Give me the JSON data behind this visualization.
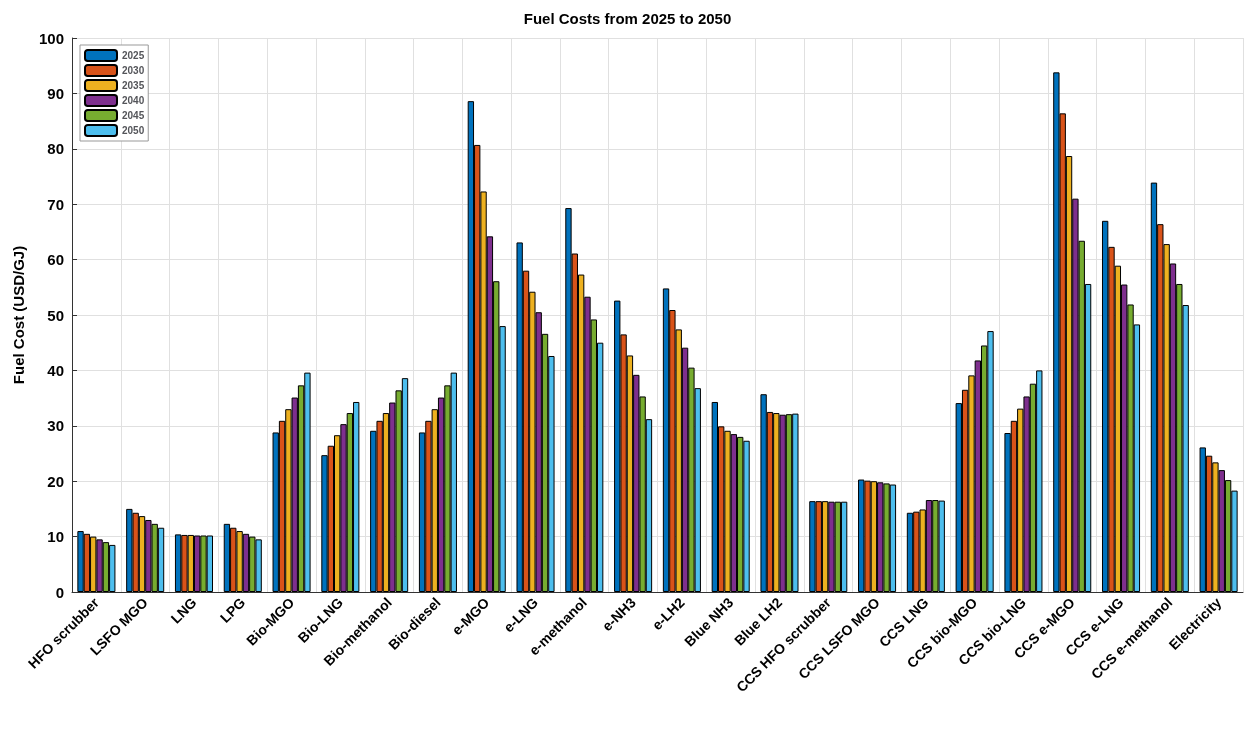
{
  "chart_data": {
    "type": "bar",
    "title": "Fuel Costs from 2025 to 2050",
    "ylabel": "Fuel Cost (USD/GJ)",
    "categories": [
      "HFO scrubber",
      "LSFO MGO",
      "LNG",
      "LPG",
      "Bio-MGO",
      "Bio-LNG",
      "Bio-methanol",
      "Bio-diesel",
      "e-MGO",
      "e-LNG",
      "e-methanol",
      "e-NH3",
      "e-LH2",
      "Blue NH3",
      "Blue LH2",
      "CCS HFO scrubber",
      "CCS LSFO MGO",
      "CCS LNG",
      "CCS bio-MGO",
      "CCS bio-LNG",
      "CCS e-MGO",
      "CCS e-LNG",
      "CCS e-methanol",
      "Electricity"
    ],
    "series": [
      {
        "name": "2025",
        "color": "#0072bd",
        "values": [
          11,
          15,
          10.4,
          12.3,
          28.8,
          24.7,
          29.1,
          28.8,
          88.6,
          63.1,
          69.3,
          52.6,
          54.8,
          34.3,
          35.7,
          16.4,
          20.3,
          14.3,
          34.1,
          28.7,
          93.8,
          67,
          73.9,
          26.1
        ]
      },
      {
        "name": "2030",
        "color": "#d95319",
        "values": [
          10.5,
          14.3,
          10.3,
          11.6,
          30.9,
          26.4,
          30.9,
          30.9,
          80.7,
          58,
          61.1,
          46.5,
          50.9,
          29.9,
          32.5,
          16.4,
          20.1,
          14.5,
          36.5,
          30.9,
          86.4,
          62.3,
          66.4,
          24.6
        ]
      },
      {
        "name": "2035",
        "color": "#edb120",
        "values": [
          10,
          13.7,
          10.3,
          11,
          33,
          28.3,
          32.3,
          33,
          72.3,
          54.2,
          57.3,
          42.7,
          47.4,
          29.1,
          32.3,
          16.4,
          20,
          14.9,
          39.1,
          33.1,
          78.7,
          58.9,
          62.8,
          23.4
        ]
      },
      {
        "name": "2040",
        "color": "#7e2f8e",
        "values": [
          9.5,
          13,
          10.2,
          10.5,
          35.1,
          30.3,
          34.2,
          35.1,
          64.2,
          50.5,
          53.3,
          39.2,
          44.1,
          28.5,
          32,
          16.3,
          19.8,
          16.6,
          41.8,
          35.3,
          71,
          55.5,
          59.3,
          22
        ]
      },
      {
        "name": "2045",
        "color": "#77ac30",
        "values": [
          9,
          12.3,
          10.2,
          10,
          37.3,
          32.3,
          36.4,
          37.3,
          56.1,
          46.6,
          49.2,
          35.3,
          40.5,
          28,
          32.1,
          16.3,
          19.6,
          16.6,
          44.5,
          37.6,
          63.4,
          51.9,
          55.6,
          20.2
        ]
      },
      {
        "name": "2050",
        "color": "#4dbeee",
        "values": [
          8.5,
          11.6,
          10.2,
          9.5,
          39.6,
          34.3,
          38.6,
          39.6,
          48,
          42.6,
          45,
          31.2,
          36.8,
          27.3,
          32.2,
          16.3,
          19.4,
          16.5,
          47.1,
          40,
          55.6,
          48.3,
          51.8,
          18.3
        ]
      }
    ],
    "ylim": [
      0,
      100
    ],
    "yticks": [
      0,
      10,
      20,
      30,
      40,
      50,
      60,
      70,
      80,
      90,
      100
    ],
    "grid": true,
    "legend": "top left"
  }
}
